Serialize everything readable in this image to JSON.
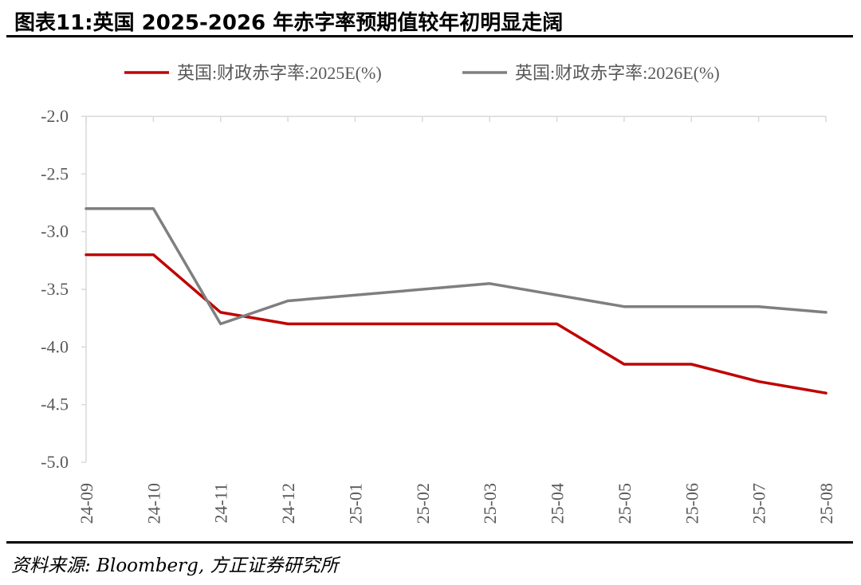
{
  "title": "图表11:英国 2025-2026 年赤字率预期值较年初明显走阔",
  "source": "资料来源: Bloomberg, 方正证券研究所",
  "colors": {
    "series_2025": "#C00000",
    "series_2026": "#7F7F7F",
    "axis": "#D9D9D9",
    "tick_text": "#595959"
  },
  "chart_data": {
    "type": "line",
    "categories": [
      "24-09",
      "24-10",
      "24-11",
      "24-12",
      "25-01",
      "25-02",
      "25-03",
      "25-04",
      "25-05",
      "25-06",
      "25-07",
      "25-08"
    ],
    "ylim": [
      -5.0,
      -2.0
    ],
    "yticks": [
      "-2.0",
      "-2.5",
      "-3.0",
      "-3.5",
      "-4.0",
      "-4.5",
      "-5.0"
    ],
    "grid": false,
    "legend_position": "top",
    "series": [
      {
        "name": "英国:财政赤字率:2025E(%)",
        "color": "#C00000",
        "points": [
          [
            0,
            -3.2
          ],
          [
            1,
            -3.2
          ],
          [
            2,
            -3.7
          ],
          [
            3,
            -3.8
          ],
          [
            7,
            -3.8
          ],
          [
            8,
            -4.15
          ],
          [
            9,
            -4.15
          ],
          [
            10,
            -4.3
          ],
          [
            11,
            -4.4
          ]
        ]
      },
      {
        "name": "英国:财政赤字率:2026E(%)",
        "color": "#7F7F7F",
        "points": [
          [
            0,
            -2.8
          ],
          [
            1,
            -2.8
          ],
          [
            2,
            -3.8
          ],
          [
            3,
            -3.6
          ],
          [
            6,
            -3.45
          ],
          [
            8,
            -3.65
          ],
          [
            10,
            -3.65
          ],
          [
            11,
            -3.7
          ]
        ]
      }
    ]
  }
}
